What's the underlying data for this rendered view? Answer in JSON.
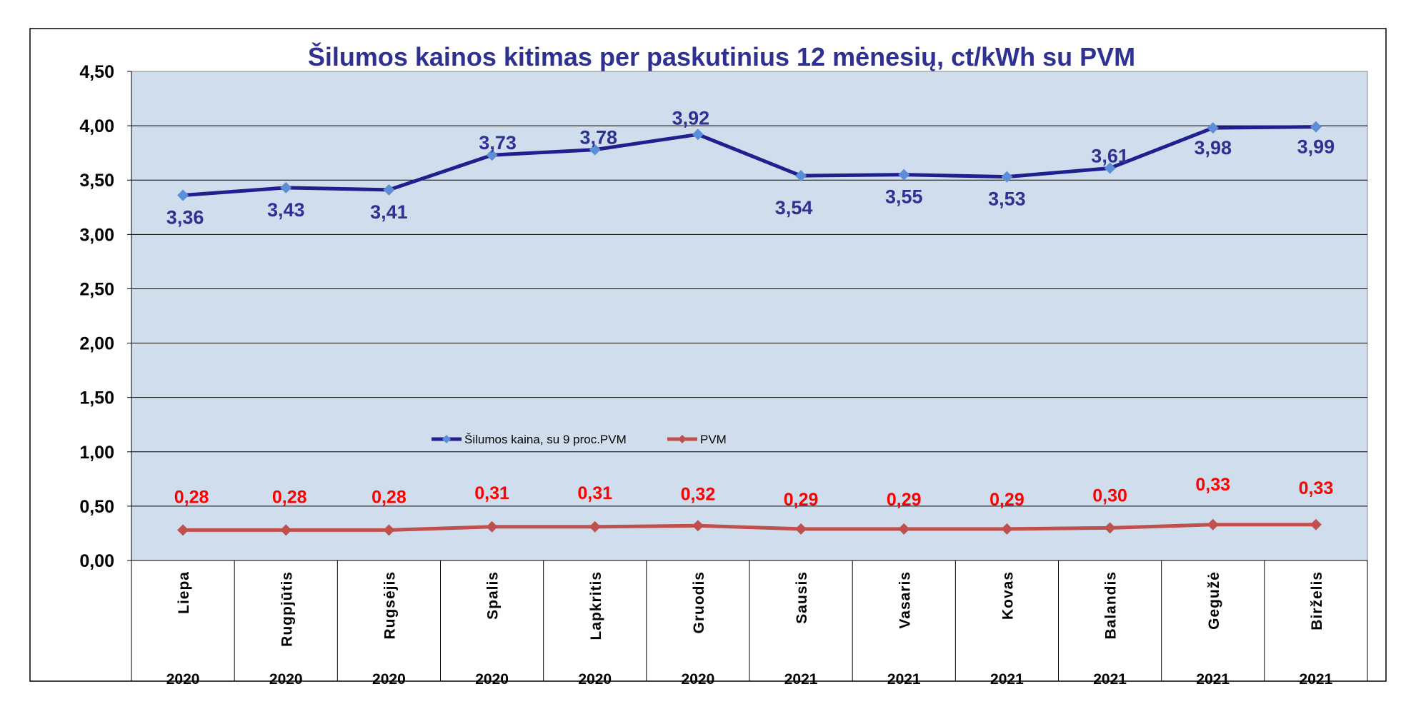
{
  "chart_data": {
    "type": "line",
    "title": "Šilumos kainos kitimas per paskutinius 12 mėnesių, ct/kWh su PVM",
    "xlabel": "",
    "ylabel": "",
    "ylim": [
      0,
      4.5
    ],
    "yticks": [
      "0,00",
      "0,50",
      "1,00",
      "1,50",
      "2,00",
      "2,50",
      "3,00",
      "3,50",
      "4,00",
      "4,50"
    ],
    "ytick_values": [
      0,
      0.5,
      1,
      1.5,
      2,
      2.5,
      3,
      3.5,
      4,
      4.5
    ],
    "grid": true,
    "legend_position": "center",
    "categories": [
      "Liepa",
      "Rugpjūtis",
      "Rugsėjis",
      "Spalis",
      "Lapkritis",
      "Gruodis",
      "Sausis",
      "Vasaris",
      "Kovas",
      "Balandis",
      "Gegužė",
      "Birželis"
    ],
    "years": [
      "2020",
      "2020",
      "2020",
      "2020",
      "2020",
      "2020",
      "2021",
      "2021",
      "2021",
      "2021",
      "2021",
      "2021"
    ],
    "series": [
      {
        "name": "Šilumos kaina, su 9 proc.PVM",
        "color": "#1f1f8f",
        "marker_color": "#5b8ed6",
        "values": [
          3.36,
          3.43,
          3.41,
          3.73,
          3.78,
          3.92,
          3.54,
          3.55,
          3.53,
          3.61,
          3.98,
          3.99
        ],
        "labels": [
          "3,36",
          "3,43",
          "3,41",
          "3,73",
          "3,78",
          "3,92",
          "3,54",
          "3,55",
          "3,53",
          "3,61",
          "3,98",
          "3,99"
        ]
      },
      {
        "name": "PVM",
        "color": "#c0504d",
        "marker_color": "#c0504d",
        "values": [
          0.28,
          0.28,
          0.28,
          0.31,
          0.31,
          0.32,
          0.29,
          0.29,
          0.29,
          0.3,
          0.33,
          0.33
        ],
        "labels": [
          "0,28",
          "0,28",
          "0,28",
          "0,31",
          "0,31",
          "0,32",
          "0,29",
          "0,29",
          "0,29",
          "0,30",
          "0,33",
          "0,33"
        ]
      }
    ],
    "colors": {
      "plot_bg": "#d0dded",
      "title": "#2e3192",
      "label_a": "#2e3192",
      "label_b": "#ff0000"
    }
  }
}
